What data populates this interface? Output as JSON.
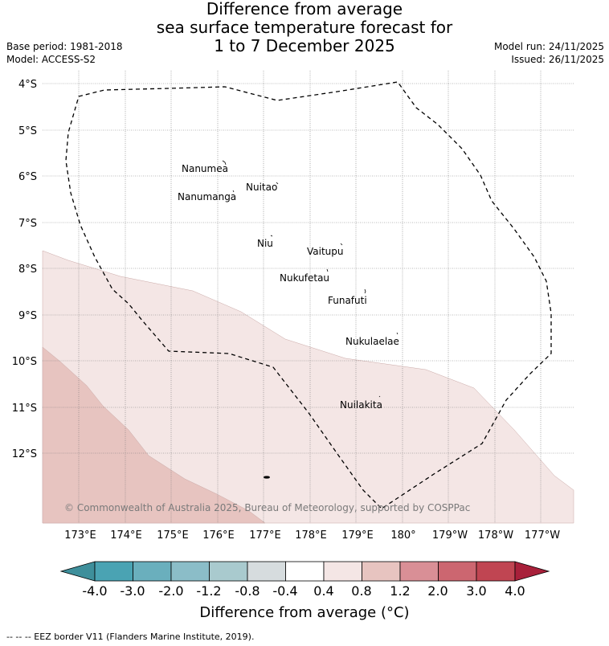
{
  "title": {
    "line1": "Difference from average",
    "line2": "sea surface temperature forecast for",
    "line3": "1 to 7 December 2025"
  },
  "meta": {
    "base_period": "Base period: 1981-2018",
    "model": "Model: ACCESS-S2",
    "model_run": "Model run: 24/11/2025",
    "issued": "Issued: 26/11/2025"
  },
  "axes": {
    "lat_labels": [
      "4°S",
      "5°S",
      "6°S",
      "7°S",
      "8°S",
      "9°S",
      "10°S",
      "11°S",
      "12°S"
    ],
    "lon_labels": [
      "173°E",
      "174°E",
      "175°E",
      "176°E",
      "177°E",
      "178°E",
      "179°E",
      "180°",
      "179°W",
      "178°W",
      "177°W"
    ]
  },
  "islands": [
    "Nanumea",
    "Nuitao",
    "Nanumanga",
    "Niu",
    "Vaitupu",
    "Nukufetau",
    "Funafuti",
    "Nukulaelae",
    "Nuilakita"
  ],
  "copyright": "© Commonwealth of Australia 2025, Bureau of Meteorology, supported by COSPPac",
  "colorbar": {
    "labels": [
      "-4.0",
      "-3.0",
      "-2.0",
      "-1.2",
      "-0.8",
      "-0.4",
      "0.4",
      "0.8",
      "1.2",
      "2.0",
      "3.0",
      "4.0"
    ],
    "colors": [
      "#3e8f9b",
      "#4aa3b3",
      "#6aafbd",
      "#8bbdc8",
      "#a9cace",
      "#d6dcde",
      "#ffffff",
      "#f4e6e5",
      "#e7c4c0",
      "#d98f96",
      "#cc6670",
      "#c04552",
      "#a8203a"
    ],
    "title": "Difference from average (°C)"
  },
  "footnote": "--  --  -- EEZ border V11 (Flanders Marine Institute, 2019).",
  "anomaly_fill": {
    "band_0_4_to_0_8": "#f4e6e5",
    "band_0_8_to_1_2": "#e7c4c0"
  }
}
